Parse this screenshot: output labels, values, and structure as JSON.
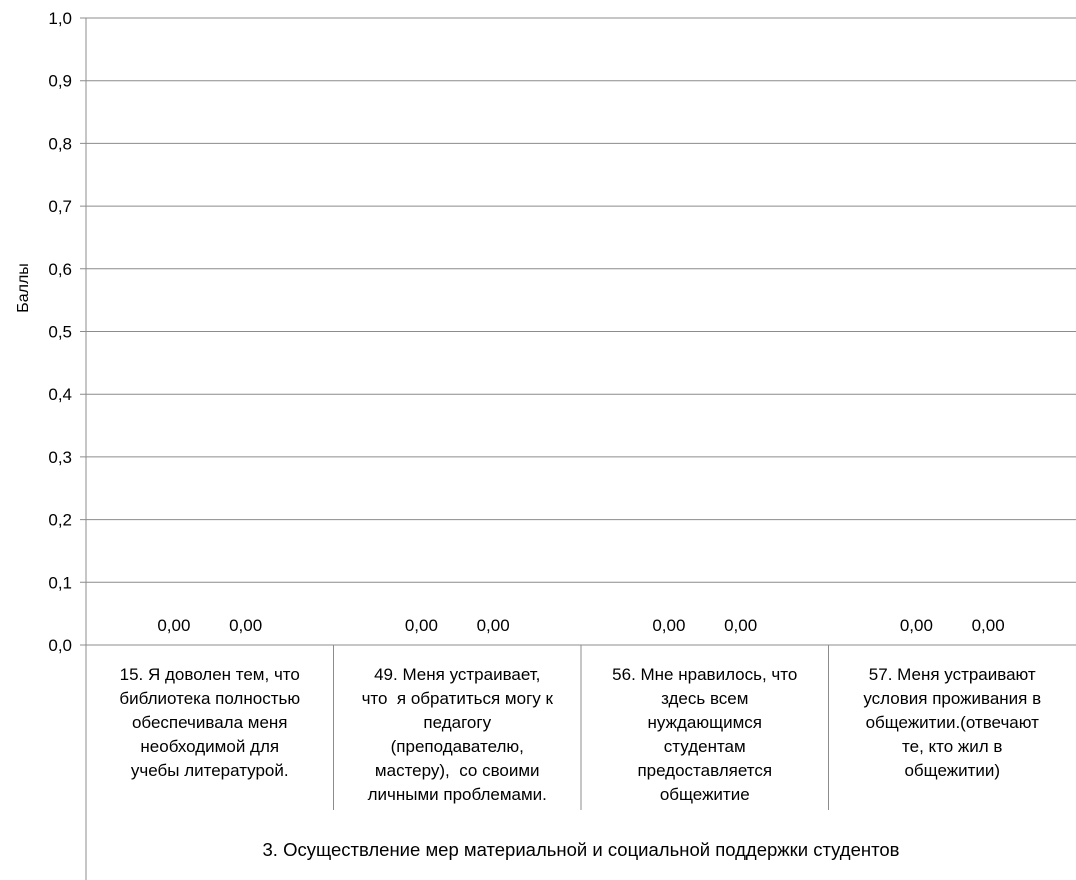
{
  "chart_data": {
    "type": "bar",
    "ylabel": "Баллы",
    "ylim": [
      0,
      1
    ],
    "y_ticks": [
      "0,0",
      "0,1",
      "0,2",
      "0,3",
      "0,4",
      "0,5",
      "0,6",
      "0,7",
      "0,8",
      "0,9",
      "1,0"
    ],
    "grid": true,
    "categories": [
      "15. Я доволен тем, что библиотека полностью обеспечивала меня необходимой для учебы литературой.",
      "49. Меня устраивает, что  я обратиться могу к педагогу (преподавателю, мастеру),  со своими личными проблемами.",
      "56. Мне нравилось, что здесь всем нуждающимся студентам предоставляется общежитие",
      "57. Меня устраивают условия проживания в общежитии.(отвечают те, кто жил в общежитии)"
    ],
    "category_lines": [
      [
        "15. Я доволен тем, что",
        "библиотека полностью",
        "обеспечивала меня",
        "необходимой для",
        "учебы литературой."
      ],
      [
        "49. Меня устраивает,",
        "что  я обратиться могу к",
        "педагогу",
        "(преподавателю,",
        "мастеру),  со своими",
        "личными проблемами."
      ],
      [
        "56. Мне нравилось, что",
        "здесь всем",
        "нуждающимся",
        "студентам",
        "предоставляется",
        "общежитие"
      ],
      [
        "57. Меня устраивают",
        "условия проживания в",
        "общежитии.(отвечают",
        "те, кто жил в",
        "общежитии)"
      ]
    ],
    "group_label": "3. Осуществление  мер материальной и социальной поддержки студентов",
    "series": [
      {
        "values": [
          0,
          0,
          0,
          0
        ],
        "labels": [
          "0,00",
          "0,00",
          "0,00",
          "0,00"
        ]
      },
      {
        "values": [
          0,
          0,
          0,
          0
        ],
        "labels": [
          "0,00",
          "0,00",
          "0,00",
          "0,00"
        ]
      }
    ]
  }
}
